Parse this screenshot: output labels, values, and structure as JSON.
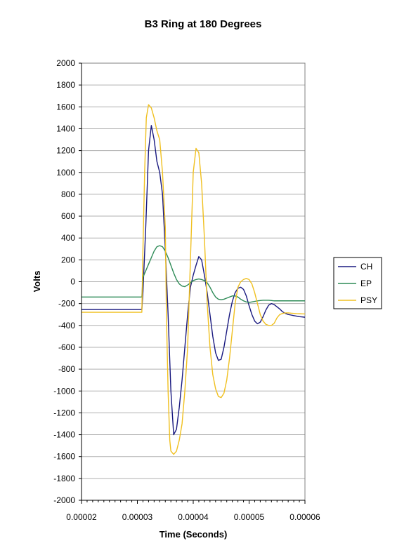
{
  "chart_data": {
    "type": "line",
    "title": "B3 Ring at 180 Degrees",
    "xlabel": "Time (Seconds)",
    "ylabel": "Volts",
    "xlim": [
      2e-05,
      6e-05
    ],
    "ylim": [
      -2000,
      2000
    ],
    "x_ticks": [
      "0.00002",
      "0.00003",
      "0.00004",
      "0.00005",
      "0.00006"
    ],
    "y_ticks": [
      "2000",
      "1800",
      "1600",
      "1400",
      "1200",
      "1000",
      "800",
      "600",
      "400",
      "200",
      "0",
      "-200",
      "-400",
      "-600",
      "-800",
      "-1000",
      "-1200",
      "-1400",
      "-1600",
      "-1800",
      "-2000"
    ],
    "grid": "horizontal",
    "legend_position": "right",
    "series": [
      {
        "name": "CH",
        "color": "#1a1a80",
        "points": [
          [
            2e-05,
            -255
          ],
          [
            2.5e-05,
            -255
          ],
          [
            3.08e-05,
            -255
          ],
          [
            3.1e-05,
            -90
          ],
          [
            3.15e-05,
            500
          ],
          [
            3.2e-05,
            1200
          ],
          [
            3.25e-05,
            1430
          ],
          [
            3.3e-05,
            1300
          ],
          [
            3.35e-05,
            1100
          ],
          [
            3.4e-05,
            1000
          ],
          [
            3.45e-05,
            800
          ],
          [
            3.5e-05,
            300
          ],
          [
            3.55e-05,
            -300
          ],
          [
            3.6e-05,
            -1000
          ],
          [
            3.65e-05,
            -1400
          ],
          [
            3.7e-05,
            -1350
          ],
          [
            3.75e-05,
            -1150
          ],
          [
            3.8e-05,
            -900
          ],
          [
            3.85e-05,
            -600
          ],
          [
            3.9e-05,
            -300
          ],
          [
            3.95e-05,
            -50
          ],
          [
            4e-05,
            60
          ],
          [
            4.05e-05,
            150
          ],
          [
            4.1e-05,
            230
          ],
          [
            4.15e-05,
            200
          ],
          [
            4.2e-05,
            60
          ],
          [
            4.25e-05,
            -100
          ],
          [
            4.3e-05,
            -300
          ],
          [
            4.35e-05,
            -500
          ],
          [
            4.4e-05,
            -650
          ],
          [
            4.45e-05,
            -720
          ],
          [
            4.5e-05,
            -710
          ],
          [
            4.55e-05,
            -600
          ],
          [
            4.6e-05,
            -450
          ],
          [
            4.65e-05,
            -300
          ],
          [
            4.7e-05,
            -180
          ],
          [
            4.75e-05,
            -100
          ],
          [
            4.8e-05,
            -60
          ],
          [
            4.85e-05,
            -50
          ],
          [
            4.9e-05,
            -70
          ],
          [
            4.95e-05,
            -130
          ],
          [
            5e-05,
            -220
          ],
          [
            5.05e-05,
            -300
          ],
          [
            5.1e-05,
            -360
          ],
          [
            5.15e-05,
            -385
          ],
          [
            5.2e-05,
            -370
          ],
          [
            5.25e-05,
            -320
          ],
          [
            5.3e-05,
            -260
          ],
          [
            5.35e-05,
            -215
          ],
          [
            5.4e-05,
            -200
          ],
          [
            5.45e-05,
            -210
          ],
          [
            5.5e-05,
            -230
          ],
          [
            5.55e-05,
            -250
          ],
          [
            5.6e-05,
            -275
          ],
          [
            5.65e-05,
            -290
          ],
          [
            5.7e-05,
            -300
          ],
          [
            5.75e-05,
            -305
          ],
          [
            5.8e-05,
            -310
          ],
          [
            5.85e-05,
            -315
          ],
          [
            5.9e-05,
            -320
          ],
          [
            5.95e-05,
            -322
          ],
          [
            6e-05,
            -325
          ]
        ]
      },
      {
        "name": "EP",
        "color": "#2e8b57",
        "points": [
          [
            2e-05,
            -140
          ],
          [
            2.5e-05,
            -140
          ],
          [
            3.08e-05,
            -140
          ],
          [
            3.1e-05,
            40
          ],
          [
            3.15e-05,
            100
          ],
          [
            3.2e-05,
            160
          ],
          [
            3.25e-05,
            220
          ],
          [
            3.3e-05,
            280
          ],
          [
            3.35e-05,
            320
          ],
          [
            3.4e-05,
            330
          ],
          [
            3.45e-05,
            320
          ],
          [
            3.5e-05,
            280
          ],
          [
            3.55e-05,
            220
          ],
          [
            3.6e-05,
            150
          ],
          [
            3.65e-05,
            80
          ],
          [
            3.7e-05,
            20
          ],
          [
            3.75e-05,
            -20
          ],
          [
            3.8e-05,
            -40
          ],
          [
            3.85e-05,
            -45
          ],
          [
            3.9e-05,
            -30
          ],
          [
            3.95e-05,
            -10
          ],
          [
            4e-05,
            10
          ],
          [
            4.05e-05,
            20
          ],
          [
            4.1e-05,
            25
          ],
          [
            4.15e-05,
            20
          ],
          [
            4.2e-05,
            10
          ],
          [
            4.25e-05,
            -10
          ],
          [
            4.3e-05,
            -50
          ],
          [
            4.35e-05,
            -100
          ],
          [
            4.4e-05,
            -140
          ],
          [
            4.45e-05,
            -160
          ],
          [
            4.5e-05,
            -165
          ],
          [
            4.55e-05,
            -160
          ],
          [
            4.6e-05,
            -150
          ],
          [
            4.65e-05,
            -140
          ],
          [
            4.7e-05,
            -130
          ],
          [
            4.75e-05,
            -130
          ],
          [
            4.8e-05,
            -140
          ],
          [
            4.85e-05,
            -160
          ],
          [
            4.9e-05,
            -175
          ],
          [
            4.95e-05,
            -185
          ],
          [
            5e-05,
            -190
          ],
          [
            5.05e-05,
            -185
          ],
          [
            5.1e-05,
            -180
          ],
          [
            5.15e-05,
            -175
          ],
          [
            5.2e-05,
            -172
          ],
          [
            5.25e-05,
            -170
          ],
          [
            5.3e-05,
            -170
          ],
          [
            5.35e-05,
            -170
          ],
          [
            5.4e-05,
            -172
          ],
          [
            5.45e-05,
            -175
          ],
          [
            5.5e-05,
            -175
          ],
          [
            5.55e-05,
            -175
          ],
          [
            5.6e-05,
            -175
          ],
          [
            5.65e-05,
            -175
          ],
          [
            5.7e-05,
            -175
          ],
          [
            5.75e-05,
            -175
          ],
          [
            5.8e-05,
            -175
          ],
          [
            5.85e-05,
            -175
          ],
          [
            5.9e-05,
            -175
          ],
          [
            5.95e-05,
            -175
          ],
          [
            6e-05,
            -175
          ]
        ]
      },
      {
        "name": "PSY",
        "color": "#f0c020",
        "points": [
          [
            2e-05,
            -280
          ],
          [
            2.5e-05,
            -280
          ],
          [
            3.08e-05,
            -280
          ],
          [
            3.1e-05,
            300
          ],
          [
            3.13e-05,
            1000
          ],
          [
            3.16e-05,
            1500
          ],
          [
            3.2e-05,
            1620
          ],
          [
            3.25e-05,
            1590
          ],
          [
            3.3e-05,
            1500
          ],
          [
            3.35e-05,
            1380
          ],
          [
            3.4e-05,
            1300
          ],
          [
            3.45e-05,
            1000
          ],
          [
            3.5e-05,
            500
          ],
          [
            3.52e-05,
            -300
          ],
          [
            3.55e-05,
            -1000
          ],
          [
            3.58e-05,
            -1450
          ],
          [
            3.6e-05,
            -1550
          ],
          [
            3.65e-05,
            -1580
          ],
          [
            3.7e-05,
            -1550
          ],
          [
            3.75e-05,
            -1450
          ],
          [
            3.8e-05,
            -1300
          ],
          [
            3.85e-05,
            -1000
          ],
          [
            3.9e-05,
            -600
          ],
          [
            3.95e-05,
            200
          ],
          [
            4e-05,
            1000
          ],
          [
            4.05e-05,
            1220
          ],
          [
            4.1e-05,
            1180
          ],
          [
            4.15e-05,
            900
          ],
          [
            4.2e-05,
            400
          ],
          [
            4.25e-05,
            -200
          ],
          [
            4.3e-05,
            -600
          ],
          [
            4.35e-05,
            -850
          ],
          [
            4.4e-05,
            -980
          ],
          [
            4.45e-05,
            -1050
          ],
          [
            4.5e-05,
            -1060
          ],
          [
            4.55e-05,
            -1020
          ],
          [
            4.6e-05,
            -900
          ],
          [
            4.65e-05,
            -700
          ],
          [
            4.7e-05,
            -450
          ],
          [
            4.75e-05,
            -200
          ],
          [
            4.8e-05,
            -50
          ],
          [
            4.85e-05,
            0
          ],
          [
            4.9e-05,
            20
          ],
          [
            4.95e-05,
            30
          ],
          [
            5e-05,
            20
          ],
          [
            5.05e-05,
            -20
          ],
          [
            5.1e-05,
            -100
          ],
          [
            5.15e-05,
            -200
          ],
          [
            5.2e-05,
            -300
          ],
          [
            5.25e-05,
            -360
          ],
          [
            5.3e-05,
            -390
          ],
          [
            5.35e-05,
            -400
          ],
          [
            5.4e-05,
            -400
          ],
          [
            5.45e-05,
            -380
          ],
          [
            5.5e-05,
            -330
          ],
          [
            5.55e-05,
            -300
          ],
          [
            5.6e-05,
            -290
          ],
          [
            5.65e-05,
            -285
          ],
          [
            5.7e-05,
            -285
          ],
          [
            5.75e-05,
            -288
          ],
          [
            5.8e-05,
            -290
          ],
          [
            5.85e-05,
            -292
          ],
          [
            5.9e-05,
            -293
          ],
          [
            5.95e-05,
            -294
          ],
          [
            6e-05,
            -295
          ]
        ]
      }
    ]
  }
}
